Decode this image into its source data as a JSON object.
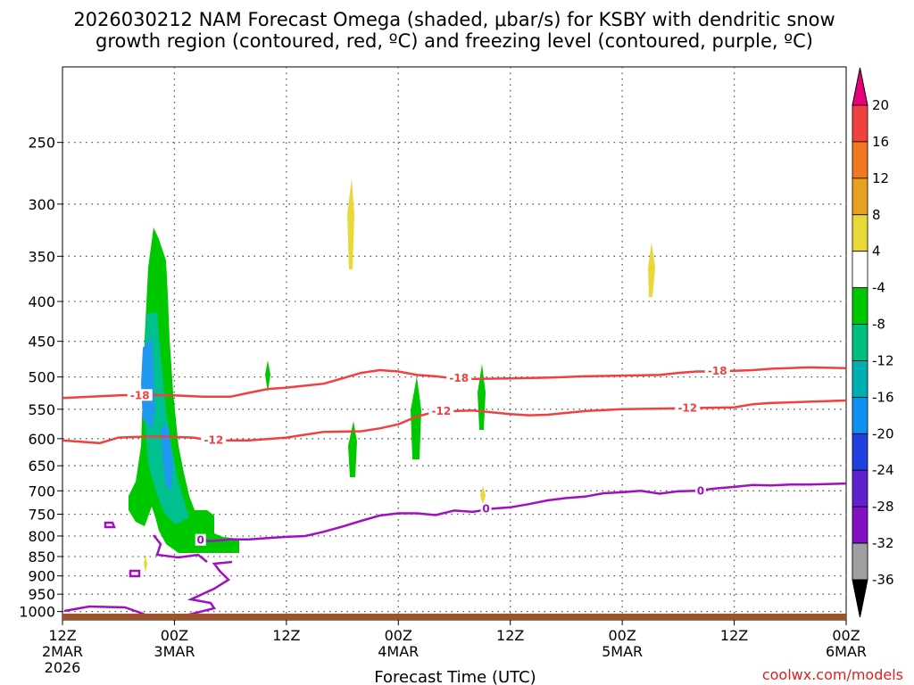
{
  "chart_data": {
    "type": "time-height",
    "title_line1": "2026030212 NAM Forecast Omega (shaded, μbar/s) for KSBY with dendritic snow",
    "title_line2": "growth region (contoured, red, ºC) and freezing level (contoured, purple, ºC)",
    "xlabel": "Forecast Time (UTC)",
    "ylabel": "",
    "credit": "coolwx.com/models",
    "y_ticks": [
      250,
      300,
      350,
      400,
      450,
      500,
      550,
      600,
      650,
      700,
      750,
      800,
      850,
      900,
      950,
      1000
    ],
    "y_range_hpa": [
      1025,
      200
    ],
    "x_range_hours": [
      0,
      84
    ],
    "x_ticks": [
      {
        "hour": 0,
        "lines": [
          "12Z",
          "2MAR",
          "2026"
        ]
      },
      {
        "hour": 12,
        "lines": [
          "00Z",
          "3MAR"
        ]
      },
      {
        "hour": 24,
        "lines": [
          "12Z"
        ]
      },
      {
        "hour": 36,
        "lines": [
          "00Z",
          "4MAR"
        ]
      },
      {
        "hour": 48,
        "lines": [
          "12Z"
        ]
      },
      {
        "hour": 60,
        "lines": [
          "00Z",
          "5MAR"
        ]
      },
      {
        "hour": 72,
        "lines": [
          "12Z"
        ]
      },
      {
        "hour": 84,
        "lines": [
          "00Z",
          "6MAR"
        ]
      }
    ],
    "grid": true,
    "colorbar": {
      "position": "right",
      "levels": [
        20,
        16,
        12,
        8,
        4,
        -4,
        -8,
        -12,
        -16,
        -20,
        -24,
        -28,
        -32,
        -36
      ],
      "colors_top_to_bottom": [
        "#e8007a",
        "#f04040",
        "#f07820",
        "#e8a020",
        "#e8d838",
        "#ffffff",
        "#00c800",
        "#00c080",
        "#00b0b0",
        "#1090f0",
        "#2040e0",
        "#6020d0",
        "#8010c0",
        "#a010c0",
        "#a0a0a0",
        "#000000"
      ]
    },
    "contour_labels": {
      "m18": "-18",
      "m12": "-12",
      "zero": "0"
    },
    "dgz_upper_minus18C": [
      [
        0,
        532
      ],
      [
        3,
        530
      ],
      [
        6,
        528
      ],
      [
        9,
        527
      ],
      [
        12,
        528
      ],
      [
        15,
        530
      ],
      [
        18,
        530
      ],
      [
        20,
        524
      ],
      [
        22,
        518
      ],
      [
        24,
        516
      ],
      [
        26,
        513
      ],
      [
        28,
        510
      ],
      [
        30,
        502
      ],
      [
        32,
        494
      ],
      [
        34,
        490
      ],
      [
        36,
        492
      ],
      [
        38,
        497
      ],
      [
        40,
        499
      ],
      [
        42,
        502
      ],
      [
        44,
        503
      ],
      [
        48,
        502
      ],
      [
        52,
        501
      ],
      [
        56,
        499
      ],
      [
        60,
        498
      ],
      [
        64,
        497
      ],
      [
        66,
        494
      ],
      [
        68,
        492
      ],
      [
        70,
        492
      ],
      [
        72,
        491
      ],
      [
        74,
        490
      ],
      [
        76,
        488
      ],
      [
        80,
        486
      ],
      [
        84,
        487
      ]
    ],
    "dgz_lower_minus12C": [
      [
        0,
        603
      ],
      [
        4,
        608
      ],
      [
        6,
        598
      ],
      [
        8,
        597
      ],
      [
        10,
        596
      ],
      [
        12,
        597
      ],
      [
        14,
        598
      ],
      [
        16,
        603
      ],
      [
        20,
        603
      ],
      [
        24,
        598
      ],
      [
        26,
        593
      ],
      [
        28,
        588
      ],
      [
        32,
        587
      ],
      [
        34,
        582
      ],
      [
        36,
        575
      ],
      [
        38,
        562
      ],
      [
        40,
        554
      ],
      [
        44,
        552
      ],
      [
        48,
        558
      ],
      [
        50,
        560
      ],
      [
        52,
        559
      ],
      [
        56,
        553
      ],
      [
        60,
        550
      ],
      [
        64,
        549
      ],
      [
        68,
        548
      ],
      [
        72,
        547
      ],
      [
        74,
        542
      ],
      [
        76,
        540
      ],
      [
        80,
        538
      ],
      [
        84,
        536
      ]
    ],
    "freezing_level_0C": [
      [
        14.5,
        810
      ],
      [
        16,
        812
      ],
      [
        18,
        808
      ],
      [
        20,
        808
      ],
      [
        22,
        805
      ],
      [
        24,
        802
      ],
      [
        26,
        800
      ],
      [
        28,
        790
      ],
      [
        30,
        778
      ],
      [
        32,
        765
      ],
      [
        34,
        753
      ],
      [
        36,
        748
      ],
      [
        38,
        748
      ],
      [
        40,
        752
      ],
      [
        42,
        742
      ],
      [
        44,
        745
      ],
      [
        46,
        738
      ],
      [
        48,
        735
      ],
      [
        50,
        728
      ],
      [
        52,
        720
      ],
      [
        54,
        715
      ],
      [
        56,
        712
      ],
      [
        58,
        705
      ],
      [
        60,
        703
      ],
      [
        62,
        700
      ],
      [
        64,
        706
      ],
      [
        66,
        701
      ],
      [
        68,
        700
      ],
      [
        70,
        695
      ],
      [
        72,
        692
      ],
      [
        74,
        688
      ],
      [
        76,
        689
      ],
      [
        78,
        687
      ],
      [
        80,
        687
      ],
      [
        84,
        685
      ]
    ]
  }
}
